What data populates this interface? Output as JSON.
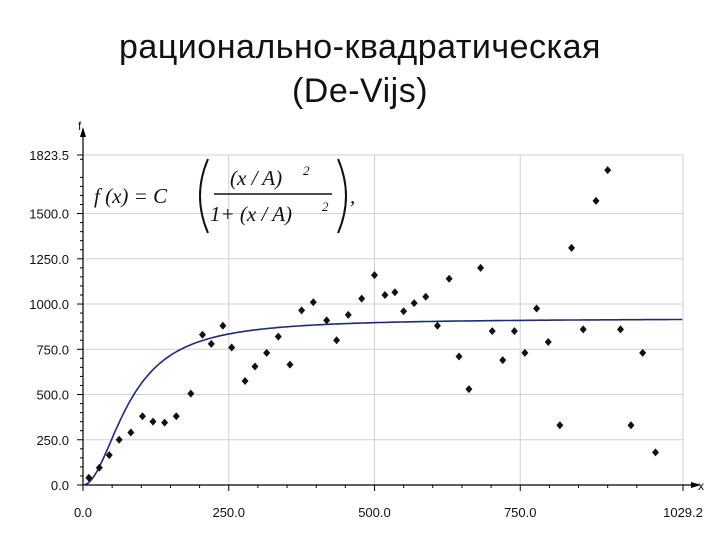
{
  "title_line1": "рационально-квадратическая",
  "title_line2": "(De-Vijs)",
  "formula": {
    "lhs": "f (x) = C",
    "numerator": "(x / A)",
    "denominator_left": "1+ (x / A)",
    "power": "2",
    "comma": ","
  },
  "chart_data": {
    "type": "scatter",
    "xlabel": "x",
    "ylabel": "f",
    "xlim": [
      0,
      1029.2
    ],
    "ylim": [
      0,
      1823.5
    ],
    "x_ticks": [
      0,
      250,
      500,
      750,
      1029.2
    ],
    "x_tick_labels": [
      "0.0",
      "250.0",
      "500.0",
      "750.0",
      "1029.2"
    ],
    "y_ticks": [
      0,
      250,
      500,
      750,
      1000,
      1250,
      1500,
      1823.5
    ],
    "y_tick_labels": [
      "0.0",
      "250.0",
      "500.0",
      "750.0",
      "1000.0",
      "1250.0",
      "1500.0",
      "1823.5"
    ],
    "grid": true,
    "points": [
      [
        10,
        40
      ],
      [
        28,
        95
      ],
      [
        45,
        165
      ],
      [
        62,
        250
      ],
      [
        82,
        290
      ],
      [
        102,
        380
      ],
      [
        120,
        350
      ],
      [
        140,
        345
      ],
      [
        160,
        380
      ],
      [
        185,
        505
      ],
      [
        205,
        830
      ],
      [
        220,
        780
      ],
      [
        240,
        880
      ],
      [
        255,
        760
      ],
      [
        278,
        575
      ],
      [
        295,
        655
      ],
      [
        315,
        730
      ],
      [
        335,
        820
      ],
      [
        355,
        665
      ],
      [
        375,
        965
      ],
      [
        395,
        1010
      ],
      [
        418,
        910
      ],
      [
        435,
        800
      ],
      [
        455,
        940
      ],
      [
        478,
        1030
      ],
      [
        500,
        1160
      ],
      [
        518,
        1050
      ],
      [
        535,
        1065
      ],
      [
        550,
        960
      ],
      [
        568,
        1005
      ],
      [
        588,
        1040
      ],
      [
        608,
        880
      ],
      [
        628,
        1140
      ],
      [
        645,
        710
      ],
      [
        662,
        530
      ],
      [
        682,
        1200
      ],
      [
        702,
        850
      ],
      [
        720,
        690
      ],
      [
        740,
        850
      ],
      [
        758,
        730
      ],
      [
        778,
        975
      ],
      [
        798,
        790
      ],
      [
        818,
        330
      ],
      [
        838,
        1310
      ],
      [
        858,
        860
      ],
      [
        880,
        1570
      ],
      [
        900,
        1740
      ],
      [
        922,
        860
      ],
      [
        940,
        330
      ],
      [
        960,
        730
      ],
      [
        982,
        180
      ]
    ],
    "model": {
      "type": "rational-quadratic",
      "C": 920,
      "A": 80
    },
    "colors": {
      "points": "#111111",
      "curve": "#1f2a7a",
      "grid": "#d0d0d0",
      "axis": "#000000"
    }
  }
}
